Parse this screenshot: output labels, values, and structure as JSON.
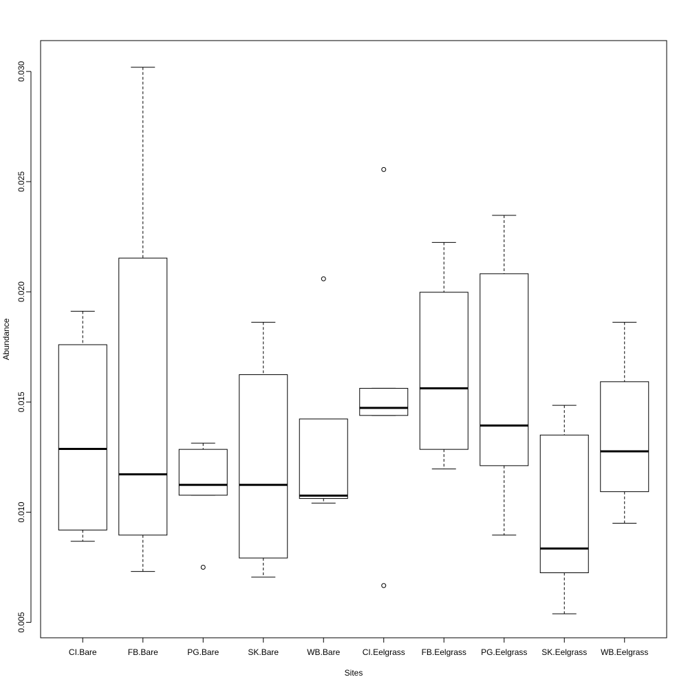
{
  "chart_data": {
    "type": "boxplot",
    "xlabel": "Sites",
    "ylabel": "Abundance",
    "ylim": [
      0.0043,
      0.0314
    ],
    "yticks": [
      0.005,
      0.01,
      0.015,
      0.02,
      0.025,
      0.03
    ],
    "ytick_labels": [
      "0.005",
      "0.010",
      "0.015",
      "0.020",
      "0.025",
      "0.030"
    ],
    "grid": false,
    "categories": [
      "CI.Bare",
      "FB.Bare",
      "PG.Bare",
      "SK.Bare",
      "WB.Bare",
      "CI.Eelgrass",
      "FB.Eelgrass",
      "PG.Eelgrass",
      "SK.Eelgrass",
      "WB.Eelgrass"
    ],
    "boxes": [
      {
        "whisker_low": 0.00868,
        "q1": 0.00919,
        "median": 0.01287,
        "q3": 0.0176,
        "whisker_high": 0.01912,
        "outliers": []
      },
      {
        "whisker_low": 0.00731,
        "q1": 0.00896,
        "median": 0.01172,
        "q3": 0.02153,
        "whisker_high": 0.03019,
        "outliers": []
      },
      {
        "whisker_low": 0.01077,
        "q1": 0.01077,
        "median": 0.01124,
        "q3": 0.01285,
        "whisker_high": 0.01313,
        "outliers": [
          0.0075
        ]
      },
      {
        "whisker_low": 0.00705,
        "q1": 0.00792,
        "median": 0.01124,
        "q3": 0.01624,
        "whisker_high": 0.01862,
        "outliers": []
      },
      {
        "whisker_low": 0.01041,
        "q1": 0.01062,
        "median": 0.01075,
        "q3": 0.01423,
        "whisker_high": 0.01423,
        "outliers": [
          0.02059
        ]
      },
      {
        "whisker_low": 0.01439,
        "q1": 0.01439,
        "median": 0.01473,
        "q3": 0.01562,
        "whisker_high": 0.01562,
        "outliers": [
          0.02555,
          0.00667
        ]
      },
      {
        "whisker_low": 0.01196,
        "q1": 0.01285,
        "median": 0.01562,
        "q3": 0.01998,
        "whisker_high": 0.02224,
        "outliers": []
      },
      {
        "whisker_low": 0.00896,
        "q1": 0.01211,
        "median": 0.01393,
        "q3": 0.02082,
        "whisker_high": 0.02347,
        "outliers": []
      },
      {
        "whisker_low": 0.00539,
        "q1": 0.00725,
        "median": 0.00835,
        "q3": 0.0135,
        "whisker_high": 0.01485,
        "outliers": []
      },
      {
        "whisker_low": 0.0095,
        "q1": 0.01093,
        "median": 0.01276,
        "q3": 0.01592,
        "whisker_high": 0.01862,
        "outliers": []
      }
    ]
  }
}
